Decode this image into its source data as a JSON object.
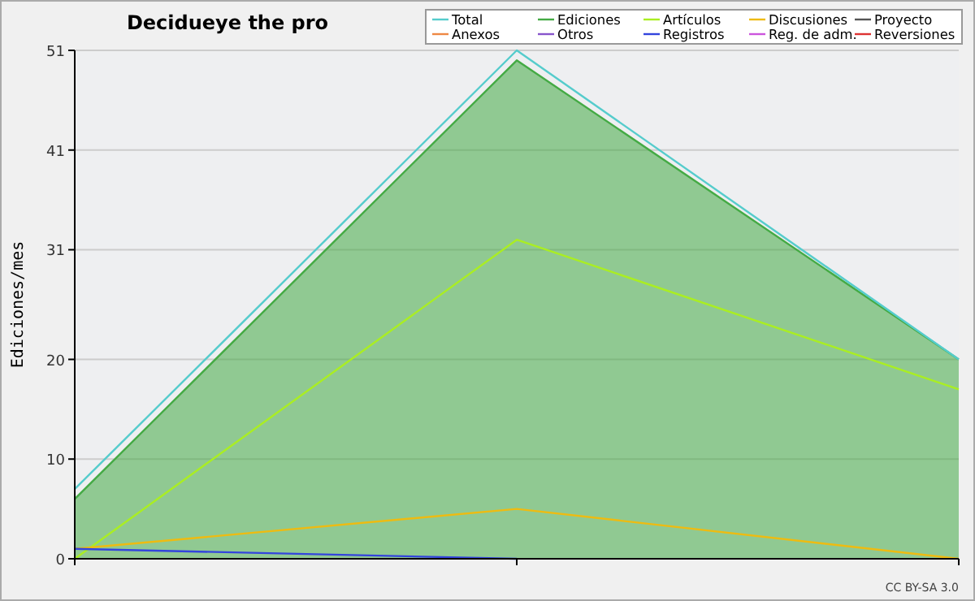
{
  "chart_data": {
    "type": "line",
    "title": "Decidueye the pro",
    "ylabel": "Ediciones/mes",
    "annotations": [
      "CC BY-SA 3.0"
    ],
    "categories": [
      null,
      null,
      null
    ],
    "ylim": [
      0,
      51
    ],
    "yticks": [
      0,
      10,
      20,
      31,
      41,
      51
    ],
    "grid": "y",
    "legend": "top right",
    "marker": "none",
    "series": [
      {
        "name": "Total",
        "color": "#55cccc",
        "values": [
          7,
          51,
          20
        ]
      },
      {
        "name": "Ediciones",
        "type": "area",
        "color": "#44aa44",
        "values": [
          6,
          50,
          20
        ]
      },
      {
        "name": "Artículos",
        "color": "#aaee22",
        "values": [
          0,
          32,
          17
        ]
      },
      {
        "name": "Discusiones",
        "color": "#eebb11",
        "values": [
          1,
          5,
          0
        ]
      },
      {
        "name": "Proyecto",
        "color": "#555555",
        "values": [
          null,
          null,
          null
        ]
      },
      {
        "name": "Anexos",
        "color": "#ee8844",
        "values": [
          null,
          null,
          null
        ]
      },
      {
        "name": "Otros",
        "color": "#8855cc",
        "values": [
          null,
          null,
          null
        ]
      },
      {
        "name": "Registros",
        "color": "#3344dd",
        "values": [
          1,
          0,
          null
        ]
      },
      {
        "name": "Reg. de adm.",
        "color": "#cc55dd",
        "values": [
          null,
          null,
          null
        ]
      },
      {
        "name": "Reversiones",
        "color": "#dd3333",
        "values": [
          null,
          null,
          null
        ]
      }
    ]
  }
}
